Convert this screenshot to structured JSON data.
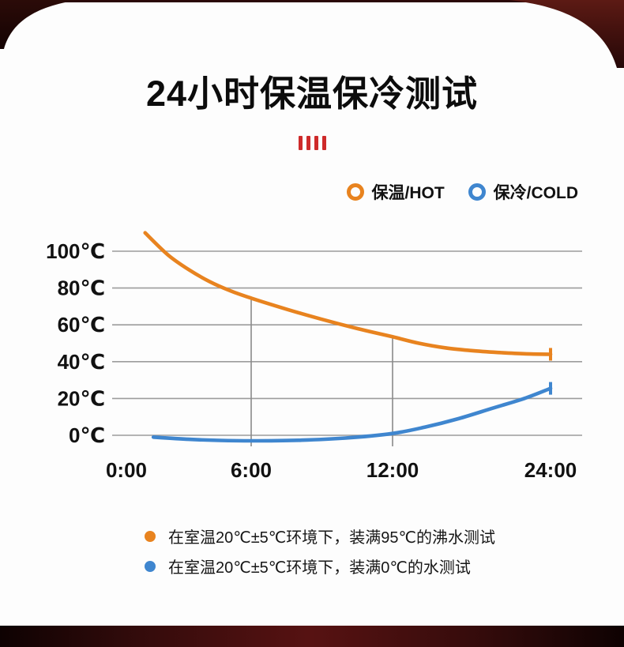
{
  "page": {
    "title": "24小时保温保冷测试",
    "decor_marks": "IIII",
    "accent_red": "#ce2a2a",
    "frame_dark": "#1e0505",
    "frame_maroon": "#5c1a14"
  },
  "legend": {
    "items": [
      {
        "label": "保温/HOT",
        "color": "#e8831f"
      },
      {
        "label": "保冷/COLD",
        "color": "#3f86cf"
      }
    ]
  },
  "chart_data": {
    "type": "line",
    "title": "24小时保温保冷测试",
    "x_ticks": [
      {
        "label": "0:00",
        "hour": 0
      },
      {
        "label": "6:00",
        "hour": 6
      },
      {
        "label": "12:00",
        "hour": 12
      },
      {
        "label": "24:00",
        "hour": 24
      }
    ],
    "y_ticks": [
      {
        "label": "100℃",
        "value": 100
      },
      {
        "label": "80℃",
        "value": 80
      },
      {
        "label": "60℃",
        "value": 60
      },
      {
        "label": "40℃",
        "value": 40
      },
      {
        "label": "20℃",
        "value": 20
      },
      {
        "label": "0℃",
        "value": 0
      }
    ],
    "ylim": [
      -12,
      112
    ],
    "grid": true,
    "legend_position": "top-right",
    "drop_line_hours": [
      6,
      12
    ],
    "series": [
      {
        "name": "保温/HOT",
        "color": "#e8831f",
        "x": [
          0.9,
          2,
          3,
          4,
          5,
          6,
          7.5,
          9,
          10.5,
          12,
          14,
          16,
          18,
          20,
          22,
          24
        ],
        "y": [
          110,
          98,
          90,
          83.5,
          78.5,
          74.5,
          68.5,
          63,
          58,
          53.5,
          50,
          47.5,
          46,
          45,
          44.3,
          44
        ]
      },
      {
        "name": "保冷/COLD",
        "color": "#3f86cf",
        "x": [
          1.3,
          3,
          4.5,
          6,
          8,
          10,
          12,
          14.5,
          17,
          19.5,
          22,
          24
        ],
        "y": [
          -1,
          -2.2,
          -2.8,
          -3,
          -2.7,
          -1.5,
          1,
          4.5,
          9,
          14.5,
          20,
          25.5
        ]
      }
    ]
  },
  "footnotes": [
    {
      "color": "#e8831f",
      "text": "在室温20℃±5℃环境下，装满95℃的沸水测试"
    },
    {
      "color": "#3f86cf",
      "text": "在室温20℃±5℃环境下，装满0℃的水测试"
    }
  ]
}
